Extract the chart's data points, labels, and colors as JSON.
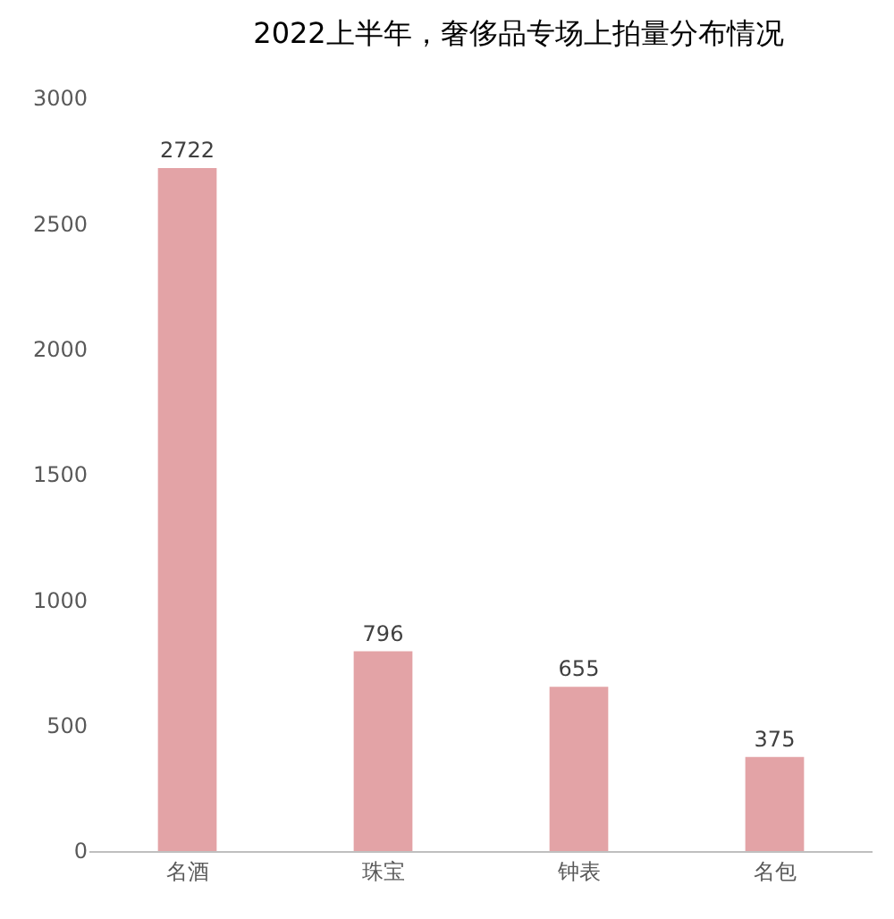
{
  "chart_data": {
    "type": "bar",
    "title": "2022上半年，奢侈品专场上拍量分布情况",
    "categories": [
      "名酒",
      "珠宝",
      "钟表",
      "名包"
    ],
    "values": [
      2722,
      796,
      655,
      375
    ],
    "color": "#e3a3a6",
    "ylim": [
      0,
      3000
    ],
    "yticks": [
      0,
      500,
      1000,
      1500,
      2000,
      2500,
      3000
    ],
    "grid": false,
    "data_labels": true
  }
}
